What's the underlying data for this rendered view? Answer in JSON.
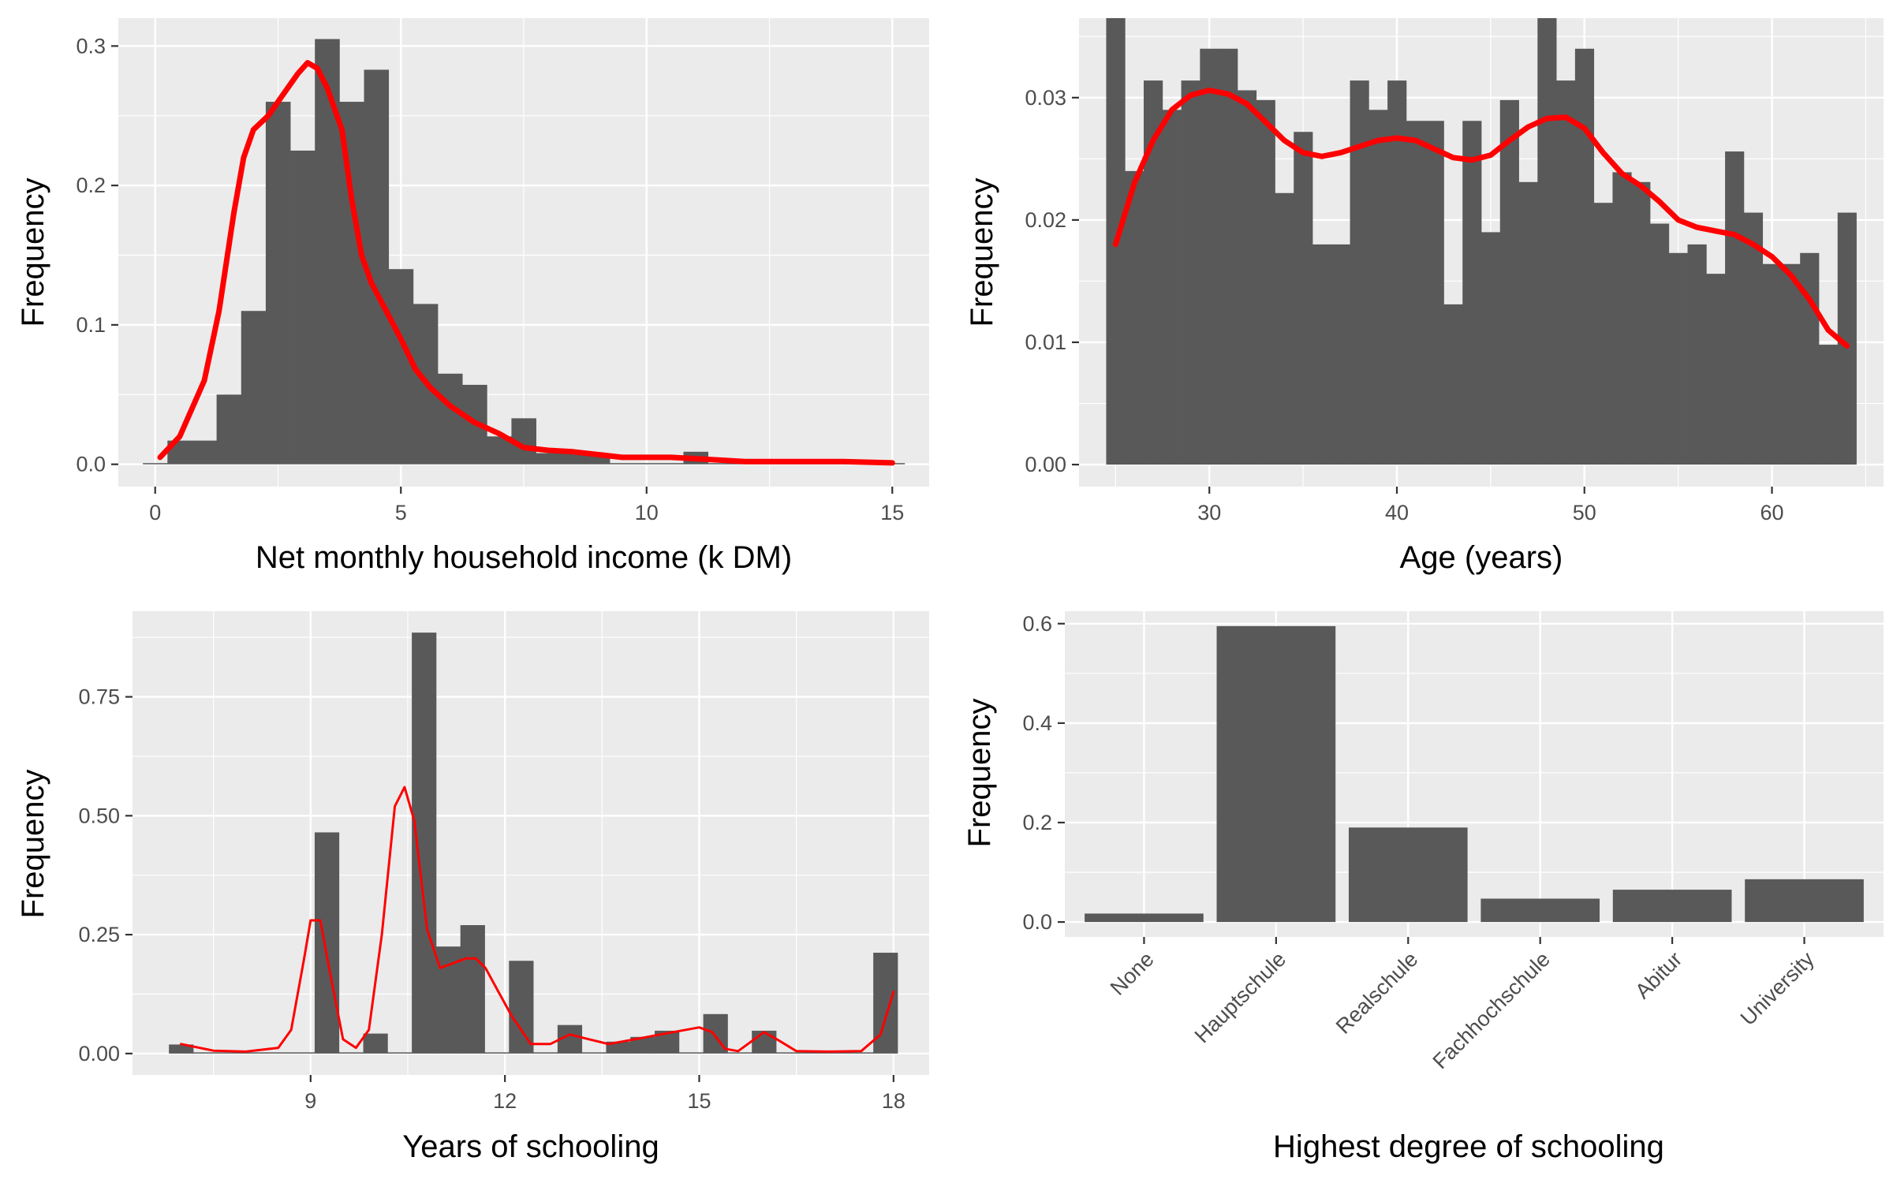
{
  "chart_data": [
    {
      "type": "bar",
      "subtype": "histogram",
      "xlabel": "Net monthly household income (k DM)",
      "ylabel": "Frequency",
      "xlim": [
        -0.75,
        15.75
      ],
      "ylim": [
        -0.016,
        0.32
      ],
      "xticks": [
        "0",
        "5",
        "10",
        "15"
      ],
      "yticks": [
        "0.0",
        "0.1",
        "0.2",
        "0.3"
      ],
      "grid": true,
      "bin_width": 0.5,
      "bin_start": -0.25,
      "values": [
        0.0,
        0.017,
        0.017,
        0.05,
        0.11,
        0.26,
        0.225,
        0.305,
        0.26,
        0.283,
        0.14,
        0.115,
        0.065,
        0.057,
        0.02,
        0.033,
        0.008,
        0.008,
        0.008,
        0.0,
        0.0,
        0.0,
        0.009,
        0.0,
        0.0,
        0.0,
        0.0,
        0.0,
        0.0,
        0.0,
        0.0
      ],
      "density_curve": {
        "x": [
          0.1,
          0.5,
          1.0,
          1.3,
          1.6,
          1.8,
          2.0,
          2.3,
          2.6,
          2.9,
          3.1,
          3.3,
          3.5,
          3.8,
          4.0,
          4.2,
          4.4,
          4.7,
          5.0,
          5.3,
          5.6,
          6.0,
          6.5,
          7.0,
          7.5,
          8.0,
          8.5,
          9.0,
          9.5,
          10.0,
          10.5,
          11.0,
          11.5,
          12.0,
          13.0,
          14.0,
          15.0
        ],
        "y": [
          0.005,
          0.02,
          0.06,
          0.11,
          0.18,
          0.22,
          0.24,
          0.25,
          0.265,
          0.28,
          0.288,
          0.284,
          0.27,
          0.24,
          0.19,
          0.15,
          0.13,
          0.11,
          0.09,
          0.068,
          0.055,
          0.042,
          0.03,
          0.022,
          0.012,
          0.01,
          0.009,
          0.007,
          0.005,
          0.005,
          0.005,
          0.004,
          0.003,
          0.002,
          0.002,
          0.002,
          0.001
        ]
      }
    },
    {
      "type": "bar",
      "subtype": "histogram",
      "xlabel": "Age (years)",
      "ylabel": "Frequency",
      "xlim": [
        23.05,
        65.95
      ],
      "ylim": [
        -0.0018,
        0.0365
      ],
      "xticks": [
        "30",
        "40",
        "50",
        "60"
      ],
      "yticks": [
        "0.00",
        "0.01",
        "0.02",
        "0.03"
      ],
      "grid": true,
      "bin_width": 1,
      "bin_start": 24.5,
      "values": [
        0.0365,
        0.024,
        0.0314,
        0.029,
        0.0314,
        0.034,
        0.034,
        0.0306,
        0.0298,
        0.0222,
        0.0272,
        0.018,
        0.018,
        0.0314,
        0.029,
        0.0314,
        0.0281,
        0.0281,
        0.0131,
        0.0281,
        0.019,
        0.0298,
        0.0231,
        0.0365,
        0.0314,
        0.034,
        0.0214,
        0.0239,
        0.0231,
        0.0197,
        0.0173,
        0.018,
        0.0156,
        0.0256,
        0.0206,
        0.0164,
        0.0164,
        0.0173,
        0.0098,
        0.0206
      ],
      "density_curve": {
        "x": [
          25,
          26,
          27,
          28,
          29,
          30,
          31,
          32,
          33,
          34,
          35,
          36,
          37,
          38,
          39,
          40,
          41,
          42,
          43,
          44,
          45,
          46,
          47,
          48,
          49,
          50,
          51,
          52,
          53,
          54,
          55,
          56,
          57,
          58,
          59,
          60,
          61,
          62,
          63,
          64
        ],
        "y": [
          0.018,
          0.023,
          0.0265,
          0.029,
          0.0302,
          0.0306,
          0.0303,
          0.0295,
          0.028,
          0.0265,
          0.0255,
          0.0252,
          0.0255,
          0.026,
          0.0265,
          0.0267,
          0.0265,
          0.0258,
          0.0251,
          0.0249,
          0.0253,
          0.0265,
          0.0276,
          0.0283,
          0.0284,
          0.0275,
          0.0255,
          0.0238,
          0.0228,
          0.0215,
          0.02,
          0.0194,
          0.0191,
          0.0188,
          0.018,
          0.017,
          0.0155,
          0.0135,
          0.011,
          0.0097
        ]
      }
    },
    {
      "type": "bar",
      "subtype": "histogram",
      "xlabel": "Years of schooling",
      "ylabel": "Frequency",
      "xlim": [
        6.25,
        18.55
      ],
      "ylim": [
        -0.045,
        0.93
      ],
      "xticks": [
        "9",
        "12",
        "15",
        "18"
      ],
      "yticks": [
        "0.00",
        "0.25",
        "0.50",
        "0.75"
      ],
      "grid": true,
      "bin_width": 0.375,
      "bin_start": 6.8125,
      "values": [
        0.019,
        0.0,
        0.0,
        0.0,
        0.0,
        0.0,
        0.465,
        0.0,
        0.042,
        0.0,
        0.885,
        0.225,
        0.27,
        0.0,
        0.195,
        0.0,
        0.06,
        0.0,
        0.025,
        0.035,
        0.048,
        0.0,
        0.083,
        0.0,
        0.048,
        0.0,
        0.0,
        0.0,
        0.0,
        0.212
      ],
      "density_curve": {
        "x": [
          7.0,
          7.5,
          8.0,
          8.5,
          8.7,
          8.9,
          9.0,
          9.15,
          9.3,
          9.5,
          9.7,
          9.9,
          10.1,
          10.3,
          10.45,
          10.6,
          10.8,
          11.0,
          11.2,
          11.4,
          11.55,
          11.7,
          11.9,
          12.1,
          12.4,
          12.7,
          13.0,
          13.3,
          13.6,
          14.0,
          14.4,
          14.8,
          15.0,
          15.2,
          15.4,
          15.6,
          15.8,
          16.0,
          16.2,
          16.5,
          17.0,
          17.5,
          17.8,
          18.0
        ],
        "y": [
          0.02,
          0.006,
          0.004,
          0.012,
          0.05,
          0.2,
          0.28,
          0.28,
          0.17,
          0.03,
          0.012,
          0.05,
          0.25,
          0.52,
          0.56,
          0.49,
          0.26,
          0.18,
          0.19,
          0.2,
          0.2,
          0.18,
          0.13,
          0.08,
          0.02,
          0.02,
          0.04,
          0.03,
          0.02,
          0.03,
          0.04,
          0.05,
          0.055,
          0.045,
          0.01,
          0.005,
          0.025,
          0.045,
          0.03,
          0.005,
          0.004,
          0.005,
          0.04,
          0.13
        ]
      }
    },
    {
      "type": "bar",
      "xlabel": "Highest degree of schooling",
      "ylabel": "Frequency",
      "ylim": [
        -0.03,
        0.625
      ],
      "yticks": [
        "0.0",
        "0.2",
        "0.4",
        "0.6"
      ],
      "grid": true,
      "categories": [
        "None",
        "Hauptschule",
        "Realschule",
        "Fachhochschule",
        "Abitur",
        "University"
      ],
      "values": [
        0.017,
        0.595,
        0.19,
        0.047,
        0.065,
        0.086
      ]
    }
  ],
  "colors": {
    "panel_background": "#ebebeb",
    "grid": "#ffffff",
    "bar_fill": "#595959",
    "density_line": "#ff0000",
    "tick_text": "#4d4d4d",
    "axis_title": "#000000"
  }
}
